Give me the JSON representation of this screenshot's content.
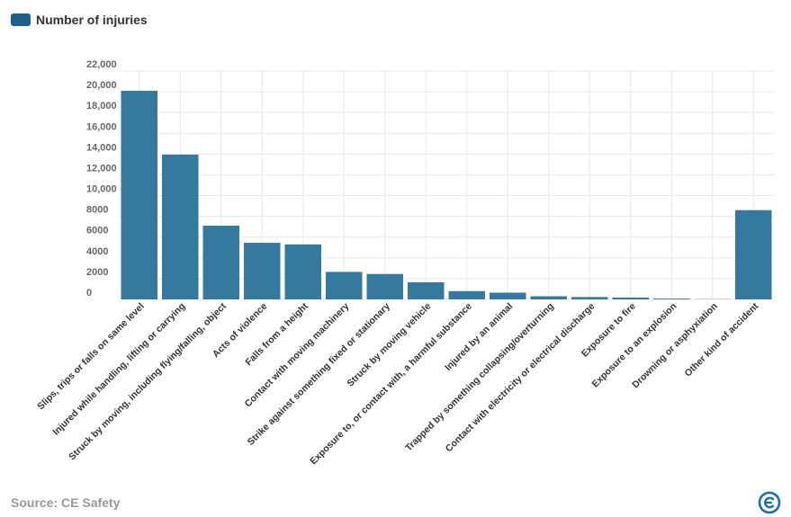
{
  "legend": {
    "label": "Number of injuries",
    "color": "#1f5f8b"
  },
  "source": "Source: CE Safety",
  "logo": {
    "icon": "ce-safety-logo-icon",
    "color": "#1a6fa8"
  },
  "colors": {
    "bar": "#35799f",
    "grid": "#e8e8e8"
  },
  "chart_data": {
    "type": "bar",
    "title": "",
    "xlabel": "",
    "ylabel": "",
    "ylim": [
      0,
      22000
    ],
    "yticks": [
      0,
      2000,
      4000,
      6000,
      8000,
      10000,
      12000,
      14000,
      16000,
      18000,
      20000,
      22000
    ],
    "ytick_labels": [
      "0",
      "2000",
      "4000",
      "6000",
      "8000",
      "10,000",
      "12,000",
      "14,000",
      "16,000",
      "18,000",
      "20,000",
      "22,000"
    ],
    "grid": true,
    "legend_position": "top-left",
    "categories": [
      "Slips, trips or falls on same level",
      "Injured while handling, lifting or carrying",
      "Struck by moving, including flying/falling, object",
      "Acts of violence",
      "Falls from a height",
      "Contact with moving machinery",
      "Strike against something fixed or stationary",
      "Struck by moving vehicle",
      "Exposure to, or contact with, a harmful substance",
      "Injured by an animal",
      "Trapped by something collapsing/overturning",
      "Contact with electricity or electrical discharge",
      "Exposure to fire",
      "Exposure to an explosion",
      "Drowning or asphyxiation",
      "Other kind of accident"
    ],
    "series": [
      {
        "name": "Number of injuries",
        "values": [
          20100,
          13950,
          7100,
          5450,
          5300,
          2650,
          2450,
          1650,
          800,
          650,
          300,
          230,
          180,
          80,
          20,
          8600
        ]
      }
    ]
  }
}
